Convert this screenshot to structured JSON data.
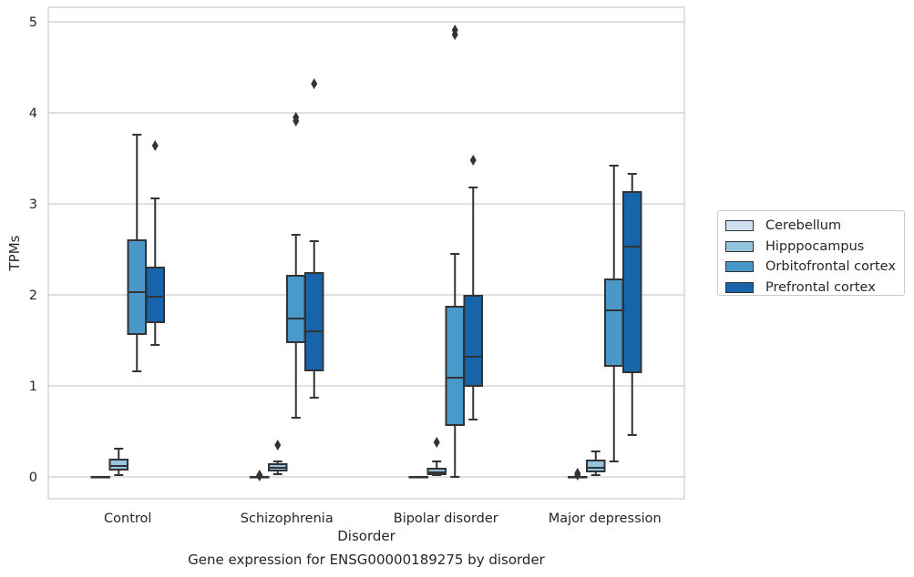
{
  "chart_data": {
    "type": "boxplot",
    "categories": [
      "Control",
      "Schizophrenia",
      "Bipolar disorder",
      "Major depression"
    ],
    "ylabel": "TPMs",
    "xlabel": "Disorder",
    "caption": "Gene expression for ENSG00000189275 by disorder",
    "ylim": [
      -0.24,
      5.16
    ],
    "yticks": [
      0,
      1,
      2,
      3,
      4,
      5
    ],
    "grid": "horizontal",
    "legend_position": "right",
    "series": [
      {
        "name": "Cerebellum",
        "color": "#d0e1f2",
        "boxes": [
          {
            "min": 0.0,
            "q1": 0.0,
            "median": 0.0,
            "q3": 0.0,
            "max": 0.0,
            "outliers": []
          },
          {
            "min": 0.0,
            "q1": 0.0,
            "median": 0.0,
            "q3": 0.0,
            "max": 0.0,
            "outliers": [
              0.01,
              0.02
            ]
          },
          {
            "min": 0.0,
            "q1": 0.0,
            "median": 0.0,
            "q3": 0.0,
            "max": 0.0,
            "outliers": []
          },
          {
            "min": 0.0,
            "q1": 0.0,
            "median": 0.0,
            "q3": 0.0,
            "max": 0.0,
            "outliers": [
              0.02,
              0.04
            ]
          }
        ]
      },
      {
        "name": "Hipppocampus",
        "color": "#94c4df",
        "boxes": [
          {
            "min": 0.02,
            "q1": 0.08,
            "median": 0.12,
            "q3": 0.19,
            "max": 0.31,
            "outliers": []
          },
          {
            "min": 0.03,
            "q1": 0.07,
            "median": 0.1,
            "q3": 0.14,
            "max": 0.17,
            "outliers": [
              0.35
            ]
          },
          {
            "min": 0.02,
            "q1": 0.03,
            "median": 0.05,
            "q3": 0.09,
            "max": 0.17,
            "outliers": [
              0.38
            ]
          },
          {
            "min": 0.02,
            "q1": 0.06,
            "median": 0.1,
            "q3": 0.18,
            "max": 0.28,
            "outliers": []
          }
        ]
      },
      {
        "name": "Orbitofrontal cortex",
        "color": "#4a98c9",
        "boxes": [
          {
            "min": 1.16,
            "q1": 1.57,
            "median": 2.03,
            "q3": 2.6,
            "max": 3.76,
            "outliers": []
          },
          {
            "min": 0.65,
            "q1": 1.48,
            "median": 1.74,
            "q3": 2.21,
            "max": 2.66,
            "outliers": [
              3.91,
              3.95
            ]
          },
          {
            "min": 0.0,
            "q1": 0.57,
            "median": 1.09,
            "q3": 1.87,
            "max": 2.45,
            "outliers": [
              4.86,
              4.91
            ]
          },
          {
            "min": 0.17,
            "q1": 1.22,
            "median": 1.83,
            "q3": 2.17,
            "max": 3.42,
            "outliers": []
          }
        ]
      },
      {
        "name": "Prefrontal cortex",
        "color": "#1764ab",
        "boxes": [
          {
            "min": 1.45,
            "q1": 1.7,
            "median": 1.98,
            "q3": 2.3,
            "max": 3.06,
            "outliers": [
              3.64
            ]
          },
          {
            "min": 0.87,
            "q1": 1.17,
            "median": 1.6,
            "q3": 2.24,
            "max": 2.59,
            "outliers": [
              4.32
            ]
          },
          {
            "min": 0.63,
            "q1": 1.0,
            "median": 1.32,
            "q3": 1.99,
            "max": 3.18,
            "outliers": [
              3.48
            ]
          },
          {
            "min": 0.46,
            "q1": 1.15,
            "median": 2.53,
            "q3": 3.13,
            "max": 3.33,
            "outliers": []
          }
        ]
      }
    ]
  }
}
